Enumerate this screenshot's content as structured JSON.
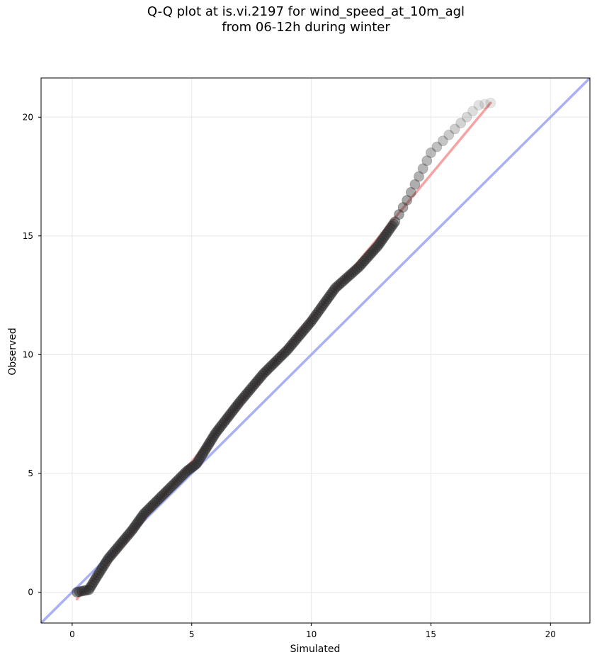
{
  "chart_data": {
    "type": "scatter",
    "title_line1": "Q-Q plot at is.vi.2197 for wind_speed_at_10m_agl",
    "title_line2": "from 06-12h during winter",
    "xlabel": "Simulated",
    "ylabel": "Observed",
    "xlim": [
      -1.3,
      21.65
    ],
    "ylim": [
      -1.3,
      21.65
    ],
    "xticks": [
      0,
      5,
      10,
      15,
      20
    ],
    "yticks": [
      0,
      5,
      10,
      15,
      20
    ],
    "grid": true,
    "quantile_knots": [
      [
        0.2,
        0.0
      ],
      [
        0.7,
        0.1
      ],
      [
        1.0,
        0.6
      ],
      [
        1.5,
        1.4
      ],
      [
        2.0,
        2.0
      ],
      [
        2.5,
        2.6
      ],
      [
        3.0,
        3.3
      ],
      [
        4.0,
        4.3
      ],
      [
        4.8,
        5.1
      ],
      [
        5.2,
        5.4
      ],
      [
        6.0,
        6.7
      ],
      [
        7.0,
        8.0
      ],
      [
        8.0,
        9.2
      ],
      [
        9.0,
        10.2
      ],
      [
        10.0,
        11.4
      ],
      [
        11.0,
        12.8
      ],
      [
        12.0,
        13.7
      ],
      [
        12.8,
        14.6
      ],
      [
        13.5,
        15.6
      ],
      [
        14.0,
        16.5
      ],
      [
        14.5,
        17.5
      ],
      [
        15.0,
        18.5
      ],
      [
        15.5,
        19.0
      ],
      [
        16.0,
        19.5
      ],
      [
        17.0,
        20.5
      ],
      [
        17.5,
        20.6
      ]
    ],
    "identity_line": {
      "name": "y = x",
      "color": "#aab0f5"
    },
    "fit_line": {
      "x": [
        0.2,
        17.5
      ],
      "y": [
        -0.3,
        20.6
      ],
      "color": "#f5a3a3"
    },
    "marker_color": "#2a2a2a"
  }
}
